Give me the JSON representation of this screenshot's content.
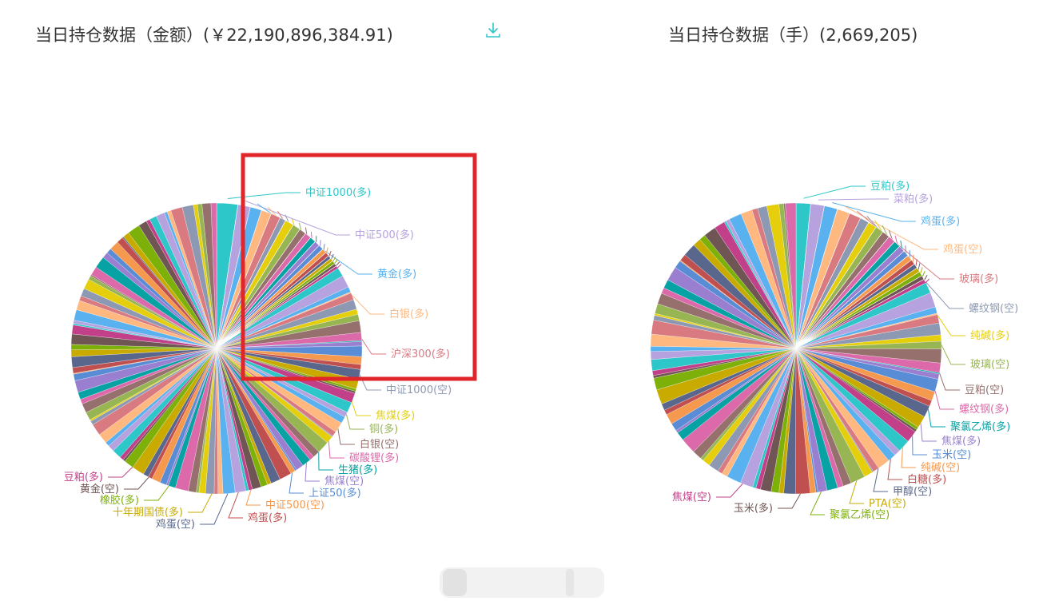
{
  "left": {
    "title": "当日持仓数据（金额）(￥22,190,896,384.91)"
  },
  "right": {
    "title": "当日持仓数据（手）(2,669,205)"
  },
  "toolbar": {
    "download_icon": "download-icon"
  },
  "colors": {
    "palette": [
      "#2ec7c9",
      "#b6a2de",
      "#5ab1ef",
      "#ffb980",
      "#d87a80",
      "#8d98b3",
      "#e5cf0d",
      "#97b552",
      "#95706d",
      "#dc69aa",
      "#07a2a4",
      "#9a7fd1",
      "#588dd5",
      "#f5994e",
      "#c05050",
      "#59678c",
      "#c9ab00",
      "#7eb00a",
      "#6f5553",
      "#c14089"
    ],
    "highlight_box": "#e0252b"
  },
  "chart_data": [
    {
      "type": "pie",
      "title": "当日持仓数据（金额）(￥22,190,896,384.91)",
      "labeled_slices": [
        {
          "name": "中证1000(多)",
          "value": 2.3
        },
        {
          "name": "中证500(多)",
          "value": 1.35
        },
        {
          "name": "黄金(多)",
          "value": 1.25
        },
        {
          "name": "白银(多)",
          "value": 1.1
        },
        {
          "name": "沪深300(多)",
          "value": 1.05
        },
        {
          "name": "中证1000(空)",
          "value": 0.65
        },
        {
          "name": "焦煤(多)",
          "value": 0.95
        },
        {
          "name": "铜(多)",
          "value": 0.85
        },
        {
          "name": "白银(空)",
          "value": 0.75
        },
        {
          "name": "碳酸锂(多)",
          "value": 0.7
        },
        {
          "name": "生猪(多)",
          "value": 0.65
        },
        {
          "name": "焦煤(空)",
          "value": 0.6
        },
        {
          "name": "上证50(多)",
          "value": 0.55
        },
        {
          "name": "中证500(空)",
          "value": 0.5
        },
        {
          "name": "鸡蛋(多)",
          "value": 0.45
        },
        {
          "name": "鸡蛋(空)",
          "value": 0.35
        },
        {
          "name": "十年期国债(多)",
          "value": 0.35
        },
        {
          "name": "橡胶(多)",
          "value": 0.35
        },
        {
          "name": "黄金(空)",
          "value": 0.3
        },
        {
          "name": "豆粕(多)",
          "value": 0.3
        }
      ],
      "unlabeled_slices_count": 110,
      "unlabeled_total": 82.45,
      "legend": "none",
      "highlighted_labels": [
        "中证1000(多)",
        "中证500(多)",
        "黄金(多)",
        "白银(多)",
        "沪深300(多)"
      ]
    },
    {
      "type": "pie",
      "title": "当日持仓数据（手）(2,669,205)",
      "labeled_slices": [
        {
          "name": "豆粕(多)",
          "value": 1.6
        },
        {
          "name": "菜粕(多)",
          "value": 1.5
        },
        {
          "name": "鸡蛋(多)",
          "value": 1.45
        },
        {
          "name": "鸡蛋(空)",
          "value": 1.4
        },
        {
          "name": "玻璃(多)",
          "value": 1.3
        },
        {
          "name": "螺纹钢(空)",
          "value": 1.0
        },
        {
          "name": "纯碱(多)",
          "value": 0.95
        },
        {
          "name": "玻璃(空)",
          "value": 0.9
        },
        {
          "name": "豆粕(空)",
          "value": 0.85
        },
        {
          "name": "螺纹钢(多)",
          "value": 0.8
        },
        {
          "name": "聚氯乙烯(多)",
          "value": 0.75
        },
        {
          "name": "焦煤(多)",
          "value": 0.7
        },
        {
          "name": "玉米(空)",
          "value": 0.65
        },
        {
          "name": "纯碱(空)",
          "value": 0.6
        },
        {
          "name": "白糖(多)",
          "value": 0.55
        },
        {
          "name": "甲醇(空)",
          "value": 0.5
        },
        {
          "name": "PTA(空)",
          "value": 0.5
        },
        {
          "name": "聚氯乙烯(空)",
          "value": 0.5
        },
        {
          "name": "玉米(多)",
          "value": 0.45
        },
        {
          "name": "焦煤(空)",
          "value": 0.45
        }
      ],
      "unlabeled_slices_count": 90,
      "unlabeled_total": 81.65,
      "legend": "none"
    }
  ]
}
